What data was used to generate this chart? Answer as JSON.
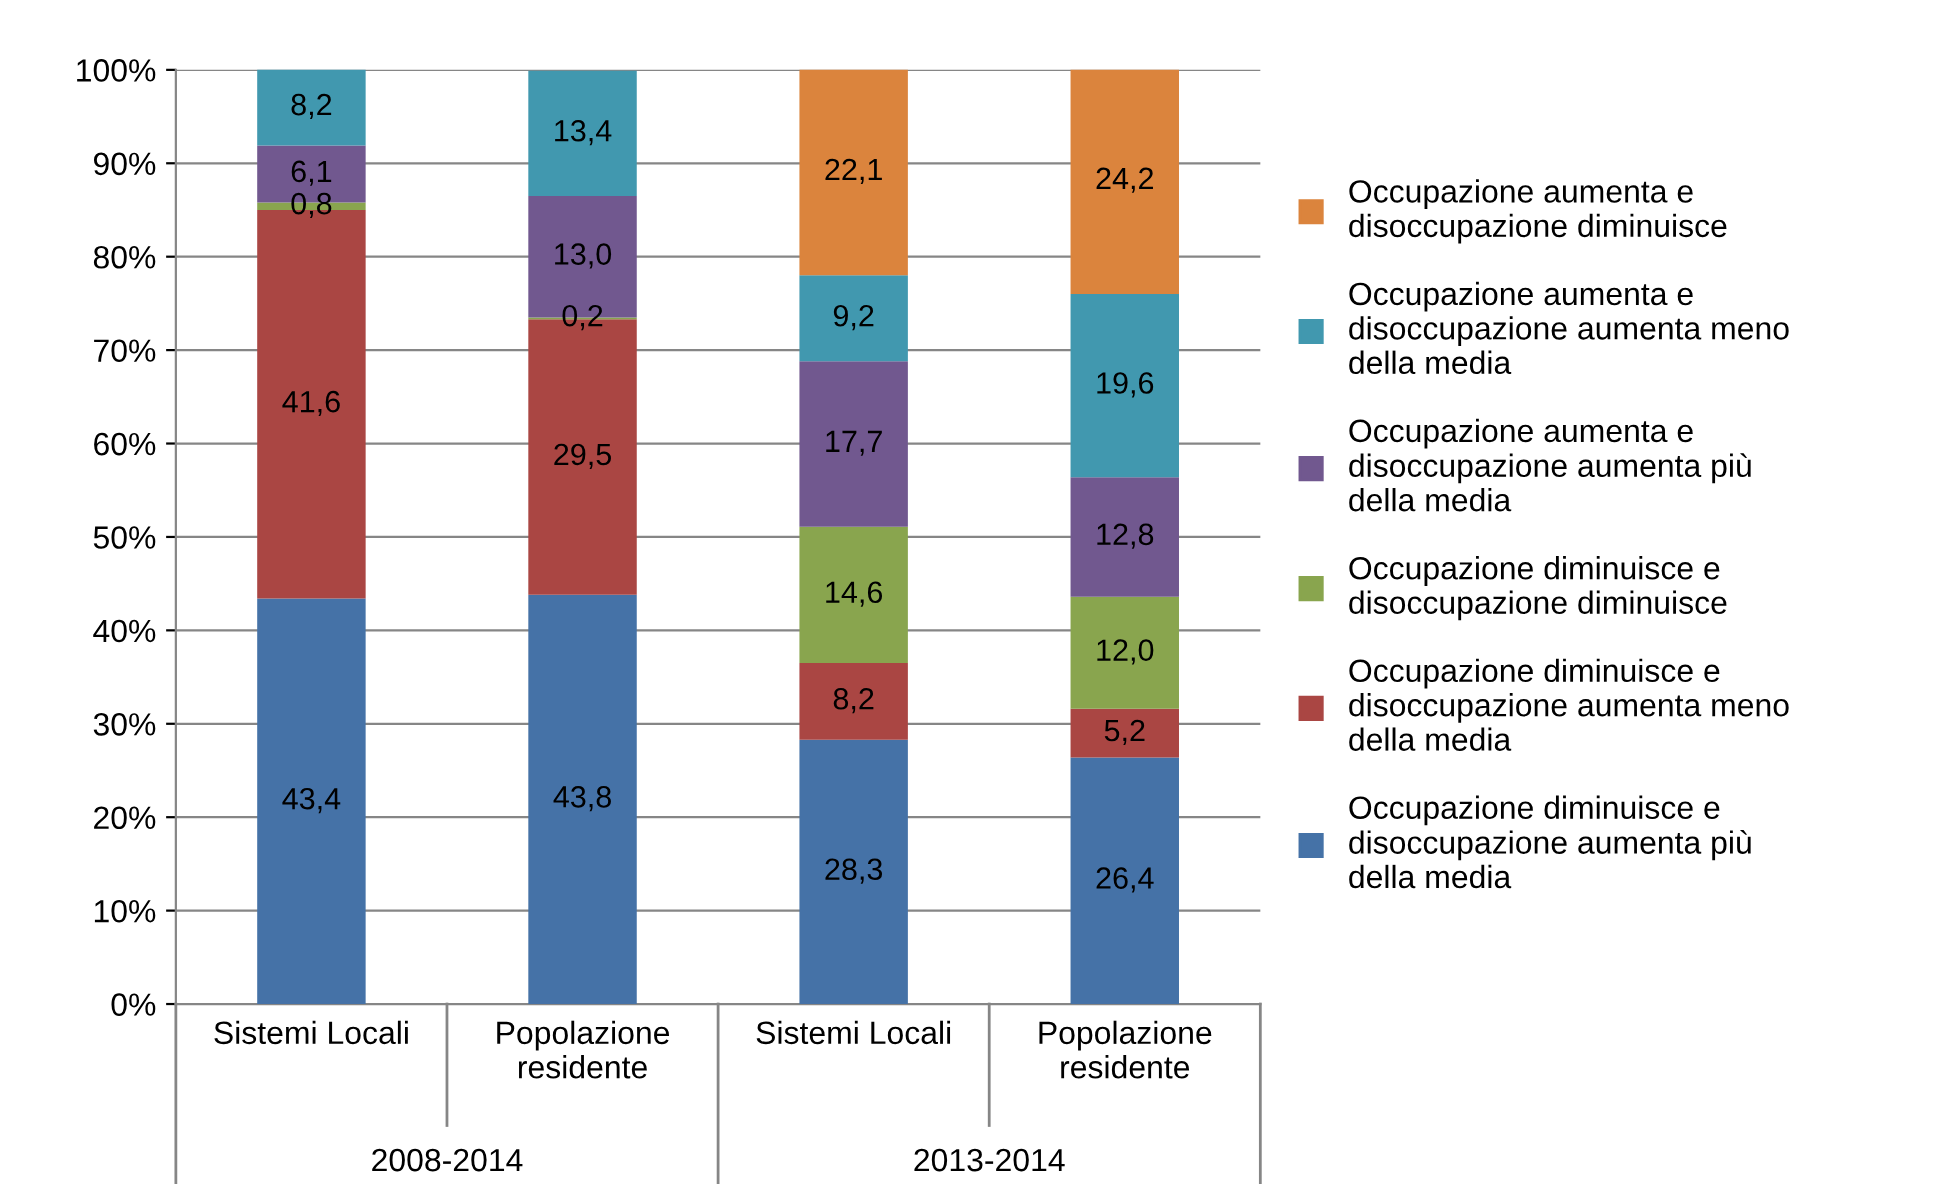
{
  "chart_data": {
    "type": "bar",
    "stacked": true,
    "categories": [
      "Sistemi Locali",
      "Popolazione\nresidente",
      "Sistemi Locali",
      "Popolazione\nresidente"
    ],
    "annotations": [
      "2008-2014",
      "2013-2014"
    ],
    "series": [
      {
        "name": "Occupazione diminuisce e disoccupazione aumenta più della media",
        "color": "#4572a7",
        "values": [
          43.4,
          43.8,
          28.3,
          26.4
        ],
        "value_labels": [
          "43,4",
          "43,8",
          "28,3",
          "26,4"
        ]
      },
      {
        "name": "Occupazione diminuisce e disoccupazione aumenta meno della media",
        "color": "#aa4643",
        "values": [
          41.6,
          29.5,
          8.2,
          5.2
        ],
        "value_labels": [
          "41,6",
          "29,5",
          "8,2",
          "5,2"
        ]
      },
      {
        "name": "Occupazione diminuisce e disoccupazione diminuisce",
        "color": "#89a54e",
        "values": [
          0.8,
          0.2,
          14.6,
          12.0
        ],
        "value_labels": [
          "0,8",
          "0,2",
          "14,6",
          "12,0"
        ]
      },
      {
        "name": "Occupazione aumenta e disoccupazione aumenta più della media",
        "color": "#71588f",
        "values": [
          6.1,
          13.0,
          17.7,
          12.8
        ],
        "value_labels": [
          "6,1",
          "13,0",
          "17,7",
          "12,8"
        ]
      },
      {
        "name": "Occupazione aumenta e disoccupazione aumenta meno della media",
        "color": "#4198af",
        "values": [
          8.2,
          13.4,
          9.2,
          19.6
        ],
        "value_labels": [
          "8,2",
          "13,4",
          "9,2",
          "19,6"
        ]
      },
      {
        "name": "Occupazione aumenta e disoccupazione diminuisce",
        "color": "#db843d",
        "values": [
          null,
          null,
          22.1,
          24.2
        ],
        "value_labels": [
          null,
          null,
          "22,1",
          "24,2"
        ]
      }
    ],
    "ylim": [
      0,
      100
    ],
    "yticks": [
      {
        "value": 0,
        "label": "0%"
      },
      {
        "value": 10,
        "label": "10%"
      },
      {
        "value": 20,
        "label": "20%"
      },
      {
        "value": 30,
        "label": "30%"
      },
      {
        "value": 40,
        "label": "40%"
      },
      {
        "value": 50,
        "label": "50%"
      },
      {
        "value": 60,
        "label": "60%"
      },
      {
        "value": 70,
        "label": "70%"
      },
      {
        "value": 80,
        "label": "80%"
      },
      {
        "value": 90,
        "label": "90%"
      },
      {
        "value": 100,
        "label": "100%"
      }
    ],
    "grid": "y",
    "legend": "right"
  }
}
